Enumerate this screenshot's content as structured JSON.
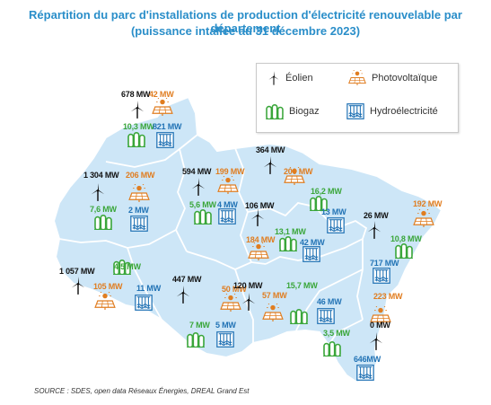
{
  "title": {
    "line1": "Répartition du parc d'installations de production d'électricité renouvelable par département",
    "line2": "(puissance intallée au 31 décembre 2023)"
  },
  "legend": {
    "eolien": "Éolien",
    "photovoltaique": "Photovoltaïque",
    "biogaz": "Biogaz",
    "hydro": "Hydroélectricité"
  },
  "colors": {
    "map_fill": "#cde6f7",
    "map_border": "#ffffff",
    "eolien": "#111111",
    "photovoltaique": "#e07d20",
    "biogaz": "#3aa63a",
    "hydro": "#2273b5",
    "title": "#2a8ec9"
  },
  "labels": {
    "ardennes": {
      "eolien": "678 MW",
      "solaire": "42 MW",
      "biogaz": "10,3 MW",
      "hydro": "821 MW"
    },
    "marne": {
      "eolien": "1 304 MW",
      "solaire": "206 MW",
      "biogaz": "7,6 MW",
      "hydro": "2 MW"
    },
    "meuse": {
      "eolien": "594 MW",
      "solaire": "199 MW",
      "biogaz": "5,6 MW",
      "hydro": "4 MW"
    },
    "moselle": {
      "eolien": "364 MW",
      "solaire": "200 MW",
      "biogaz": "16,2 MW",
      "hydro": "13 MW"
    },
    "meurthe_et_moselle": {
      "eolien": "106 MW",
      "solaire": "184 MW",
      "biogaz": "13,1 MW",
      "hydro": "42 MW"
    },
    "bas_rhin": {
      "eolien": "26 MW",
      "solaire": "192 MW",
      "biogaz": "10,8 MW",
      "hydro": "717 MW"
    },
    "aube": {
      "eolien": "1 057 MW",
      "solaire": "105 MW",
      "biogaz": "4,5 MW",
      "hydro": "11 MW"
    },
    "haute_marne": {
      "eolien": "447 MW",
      "solaire": "50 MW",
      "biogaz": "7 MW",
      "hydro": "5 MW"
    },
    "vosges": {
      "eolien": "120 MW",
      "solaire": "57 MW",
      "biogaz": "15,7 MW",
      "hydro": "46 MW"
    },
    "haut_rhin": {
      "eolien": "0 MW",
      "solaire": "223 MW",
      "biogaz": "3,5 MW",
      "hydro": "646MW"
    }
  },
  "source": "SOURCE : SDES, open data Réseaux Énergies, DREAL Grand Est"
}
